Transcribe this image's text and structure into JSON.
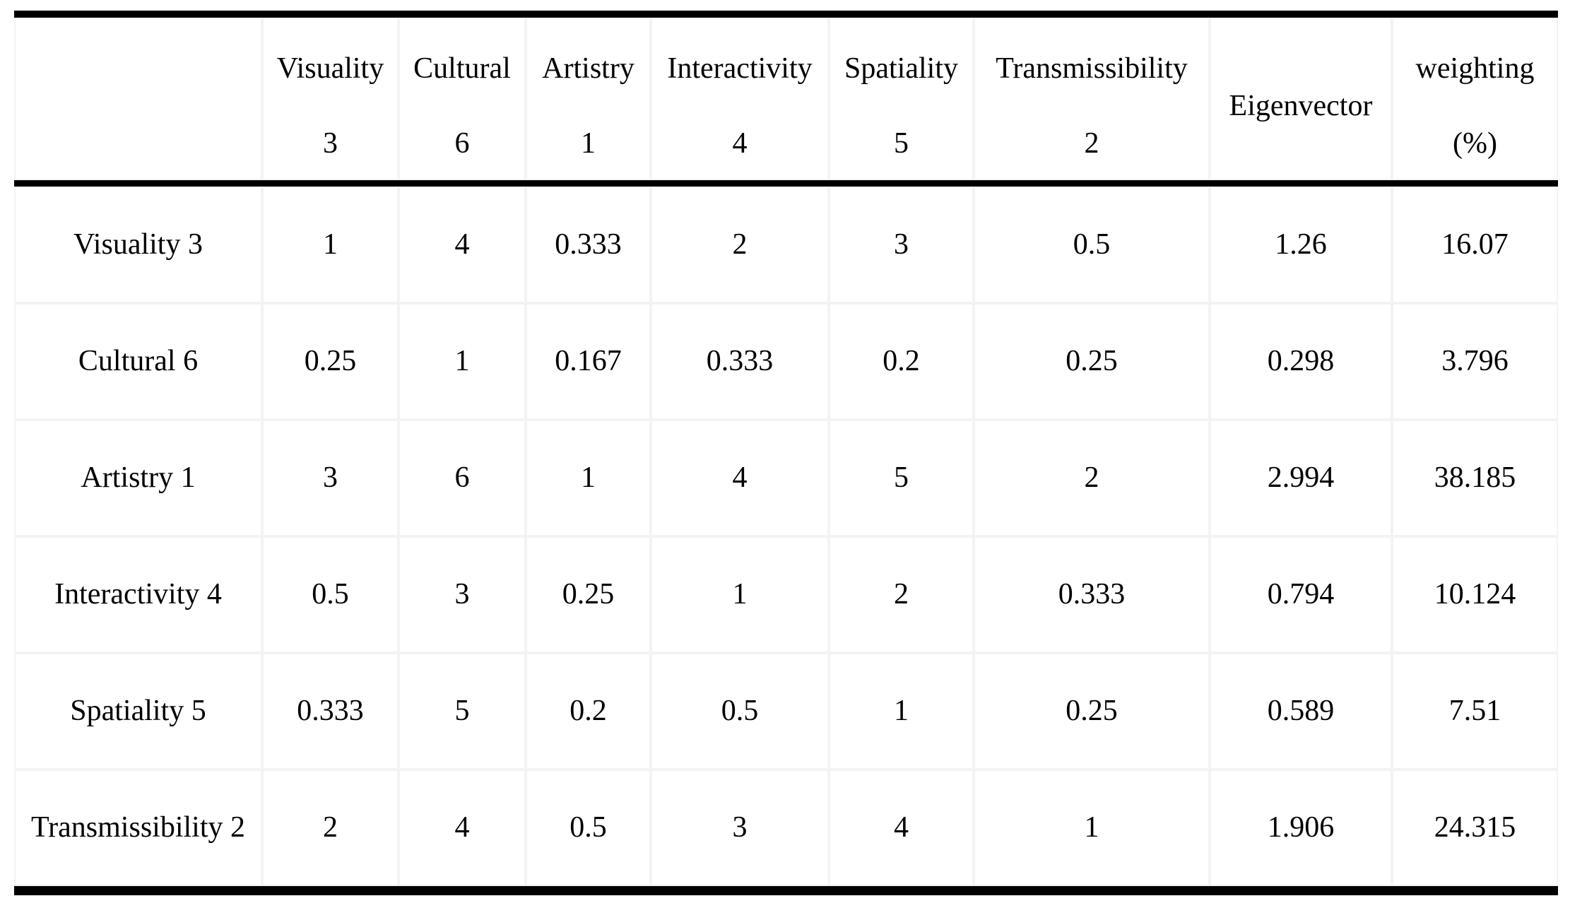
{
  "table": {
    "title_semantic": "AHP pairwise comparison matrix with eigenvector and weighting",
    "colors": {
      "rule": "#000000",
      "gridline": "#f3f3f3",
      "cell_background": "#ffffff",
      "text": "#000000"
    },
    "header": {
      "corner": "",
      "cols": [
        {
          "label": "Visuality",
          "sub": "3"
        },
        {
          "label": "Cultural",
          "sub": "6"
        },
        {
          "label": "Artistry",
          "sub": "1"
        },
        {
          "label": "Interactivity",
          "sub": "4"
        },
        {
          "label": "Spatiality",
          "sub": "5"
        },
        {
          "label": "Transmissibility",
          "sub": "2"
        },
        {
          "label": "Eigenvector",
          "sub": ""
        },
        {
          "label": "weighting",
          "sub": "(%)"
        }
      ]
    },
    "rows": [
      {
        "label": "Visuality 3",
        "values": [
          "1",
          "4",
          "0.333",
          "2",
          "3",
          "0.5",
          "1.26",
          "16.07"
        ]
      },
      {
        "label": "Cultural 6",
        "values": [
          "0.25",
          "1",
          "0.167",
          "0.333",
          "0.2",
          "0.25",
          "0.298",
          "3.796"
        ]
      },
      {
        "label": "Artistry 1",
        "values": [
          "3",
          "6",
          "1",
          "4",
          "5",
          "2",
          "2.994",
          "38.185"
        ]
      },
      {
        "label": "Interactivity 4",
        "values": [
          "0.5",
          "3",
          "0.25",
          "1",
          "2",
          "0.333",
          "0.794",
          "10.124"
        ]
      },
      {
        "label": "Spatiality 5",
        "values": [
          "0.333",
          "5",
          "0.2",
          "0.5",
          "1",
          "0.25",
          "0.589",
          "7.51"
        ]
      },
      {
        "label": "Transmissibility 2",
        "values": [
          "2",
          "4",
          "0.5",
          "3",
          "4",
          "1",
          "1.906",
          "24.315"
        ]
      }
    ]
  }
}
